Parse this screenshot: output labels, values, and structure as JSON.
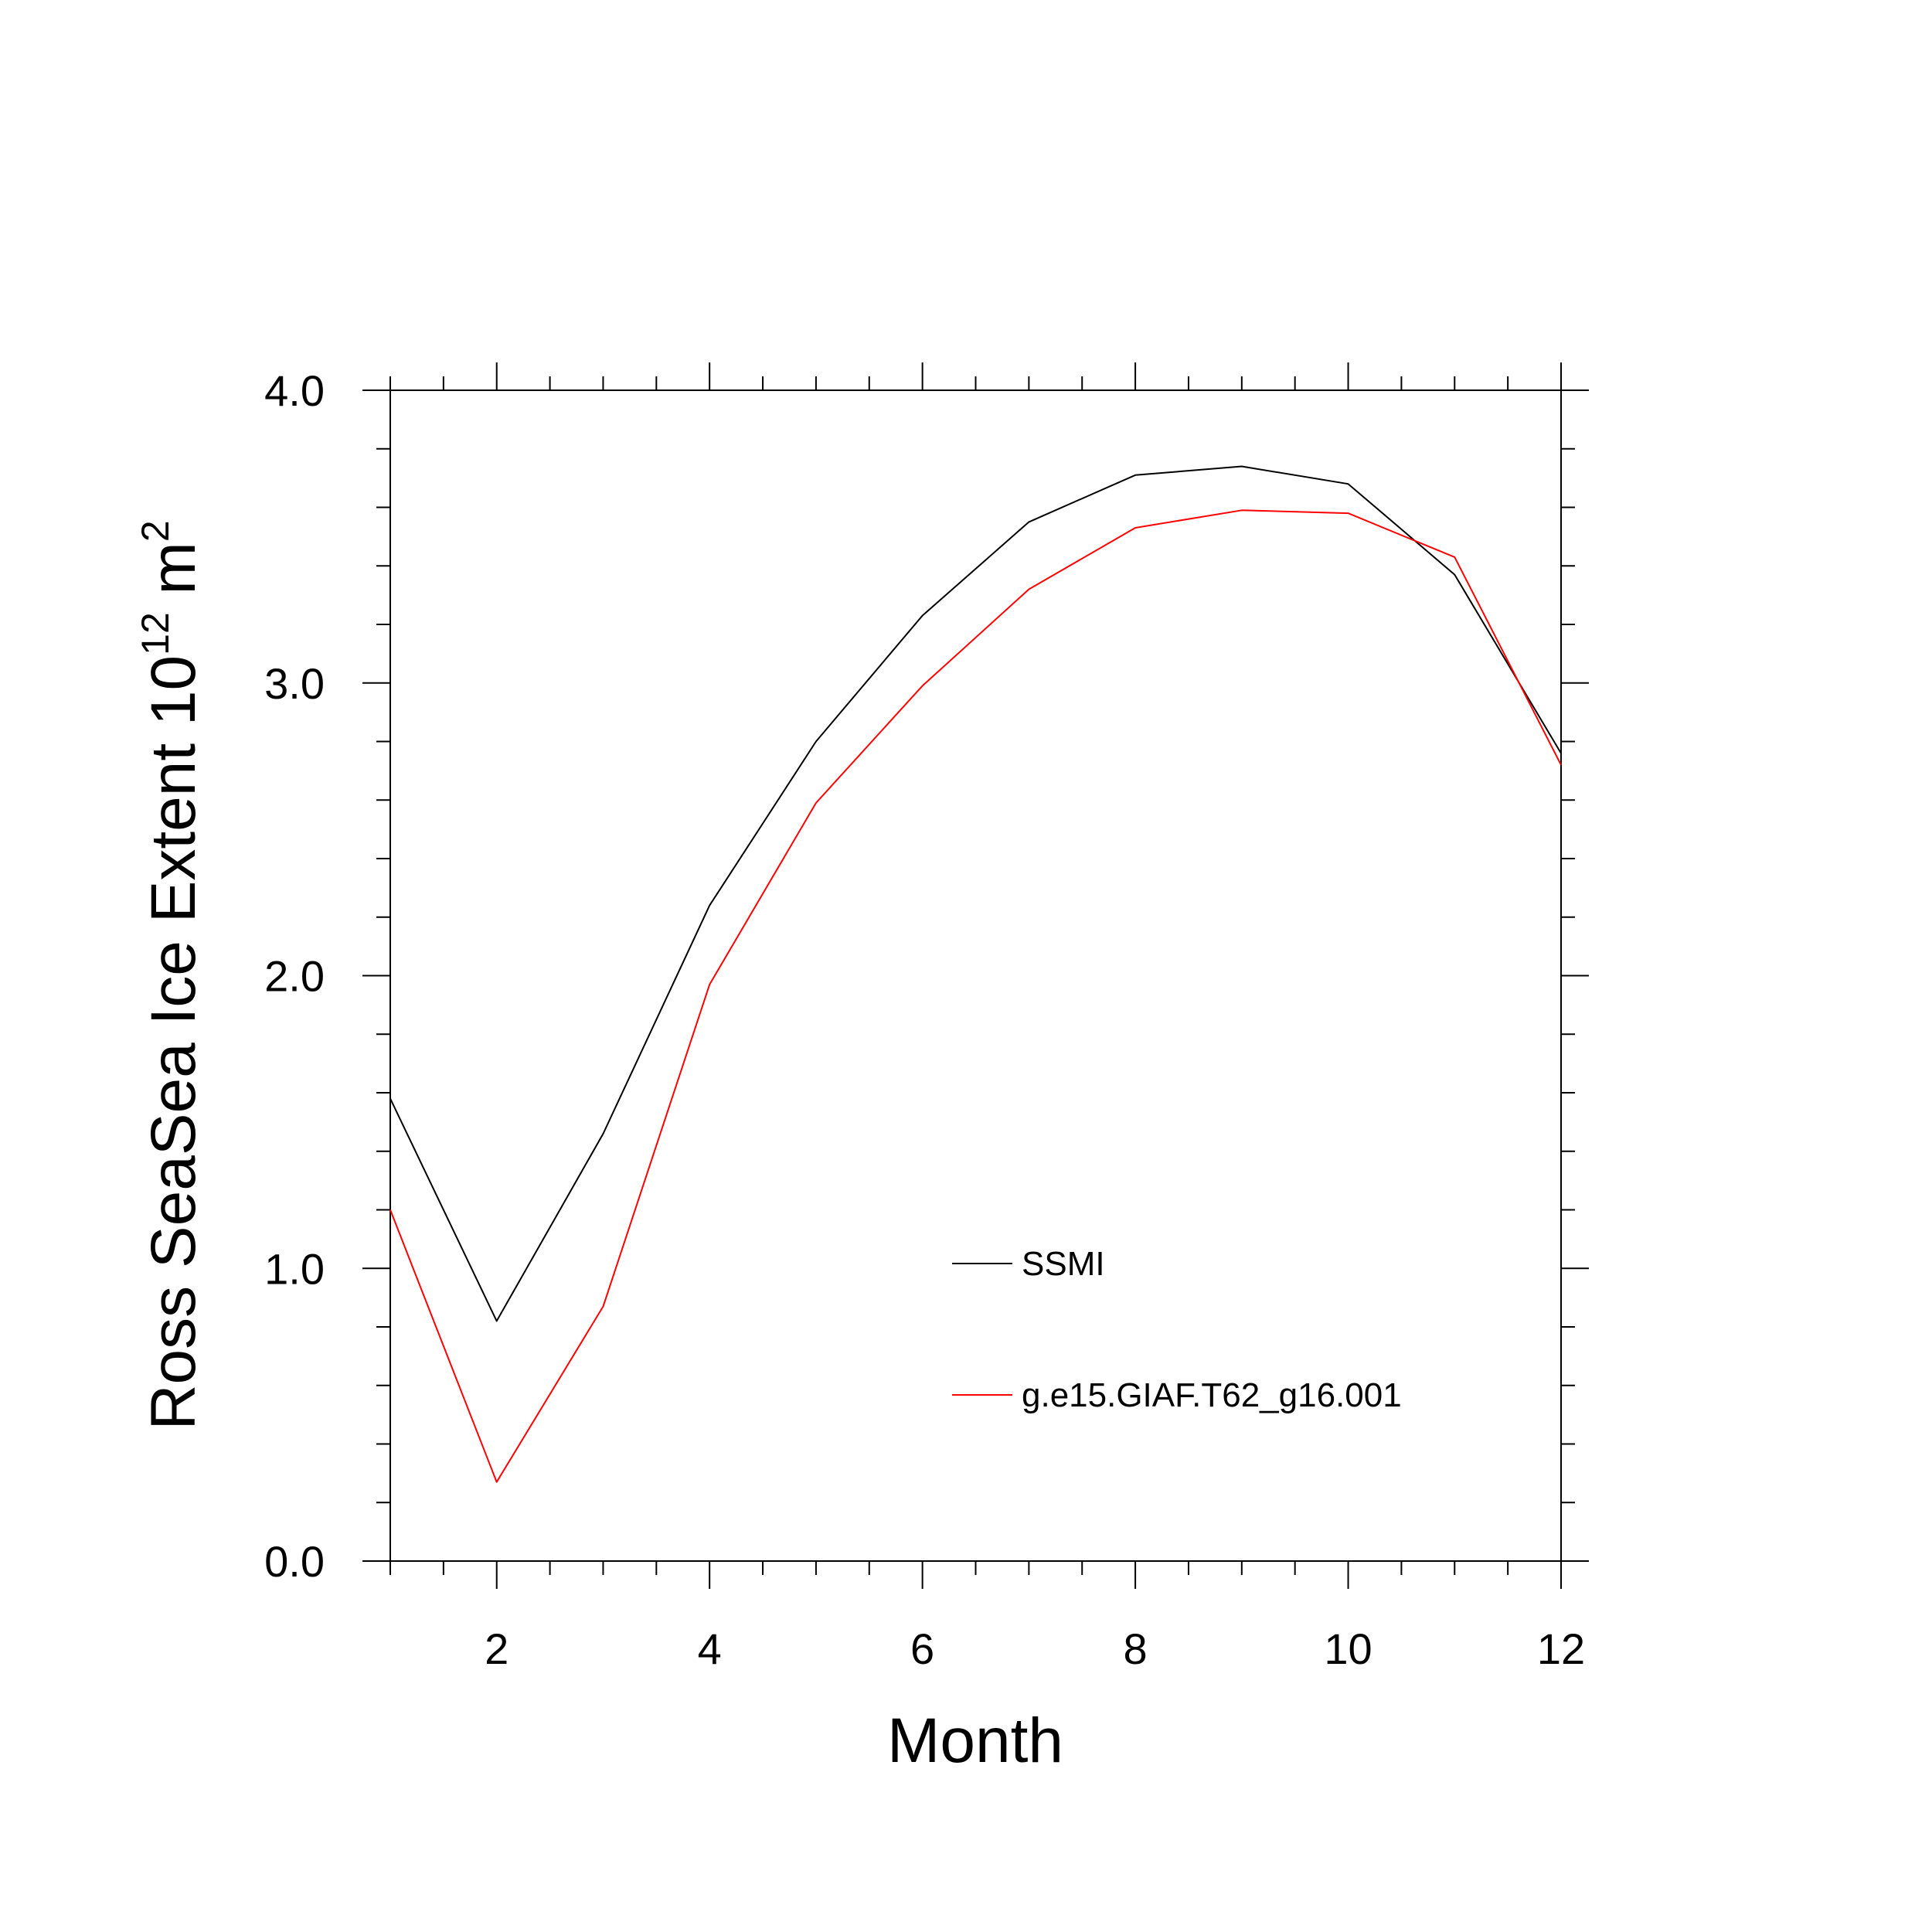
{
  "chart_data": {
    "type": "line",
    "xlabel": "Month",
    "ylabel": {
      "text": "Ross SeaSea Ice Extent 10",
      "exponent": "12",
      "unit": " m",
      "unit_exponent": "2"
    },
    "xlim": [
      1,
      12
    ],
    "ylim": [
      0,
      4
    ],
    "x_ticks": [
      2,
      4,
      6,
      8,
      10,
      12
    ],
    "y_ticks": [
      0,
      1,
      2,
      3,
      4
    ],
    "y_tick_labels": [
      "0.0",
      "1.0",
      "2.0",
      "3.0",
      "4.0"
    ],
    "x_minor_step": 0.5,
    "y_minor_step": 0.2,
    "grid": false,
    "legend_placement": "lower-right",
    "x": [
      1,
      2,
      3,
      4,
      5,
      6,
      7,
      8,
      9,
      10,
      11,
      12
    ],
    "series": [
      {
        "name": "SSMI",
        "color": "#000000",
        "values": [
          1.58,
          0.82,
          1.46,
          2.24,
          2.8,
          3.23,
          3.55,
          3.71,
          3.74,
          3.68,
          3.37,
          2.76
        ]
      },
      {
        "name": "g.e15.GIAF.T62_g16.001",
        "color": "#ff0000",
        "values": [
          1.2,
          0.27,
          0.87,
          1.97,
          2.59,
          2.99,
          3.32,
          3.53,
          3.59,
          3.58,
          3.43,
          2.72
        ]
      }
    ]
  }
}
